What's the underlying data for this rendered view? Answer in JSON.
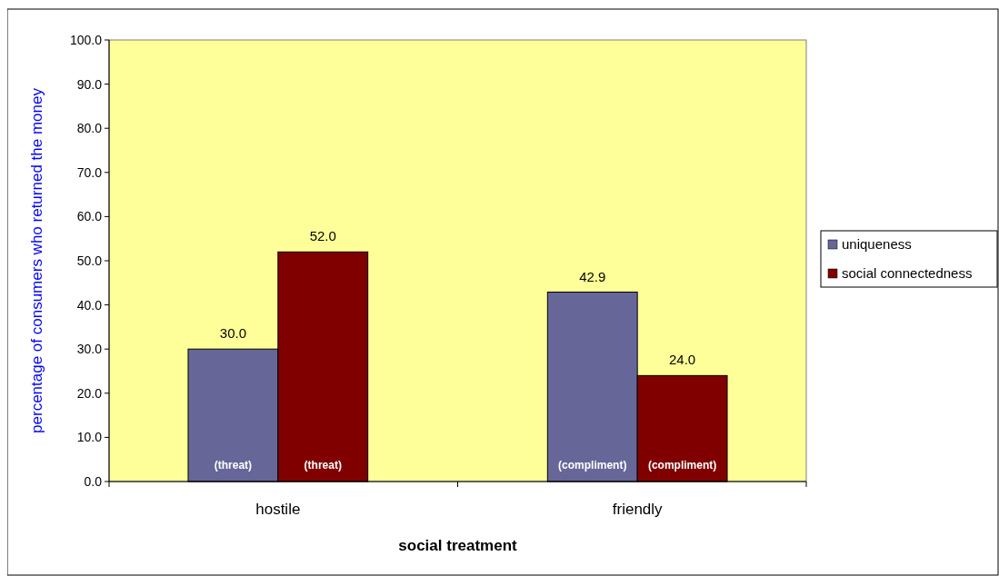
{
  "chart_data": {
    "type": "bar",
    "xlabel": "social treatment",
    "ylabel": "percentage of consumers who returned the money",
    "categories": [
      "hostile",
      "friendly"
    ],
    "series": [
      {
        "name": "uniqueness",
        "color": "#666699",
        "values": [
          30.0,
          42.9
        ],
        "value_labels": [
          "30.0",
          "42.9"
        ]
      },
      {
        "name": "social connectedness",
        "color": "#800000",
        "values": [
          52.0,
          24.0
        ],
        "value_labels": [
          "52.0",
          "24.0"
        ]
      }
    ],
    "annotations": [
      "(threat)",
      "(threat)",
      "(compliment)",
      "(compliment)"
    ],
    "ylim": [
      0,
      100
    ],
    "yticks": [
      {
        "value": 0,
        "label": "0.0"
      },
      {
        "value": 10,
        "label": "10.0"
      },
      {
        "value": 20,
        "label": "20.0"
      },
      {
        "value": 30,
        "label": "30.0"
      },
      {
        "value": 40,
        "label": "40.0"
      },
      {
        "value": 50,
        "label": "50.0"
      },
      {
        "value": 60,
        "label": "60.0"
      },
      {
        "value": 70,
        "label": "70.0"
      },
      {
        "value": 80,
        "label": "80.0"
      },
      {
        "value": 90,
        "label": "90.0"
      },
      {
        "value": 100,
        "label": "100.0"
      }
    ],
    "grid": false,
    "legend": "right"
  }
}
